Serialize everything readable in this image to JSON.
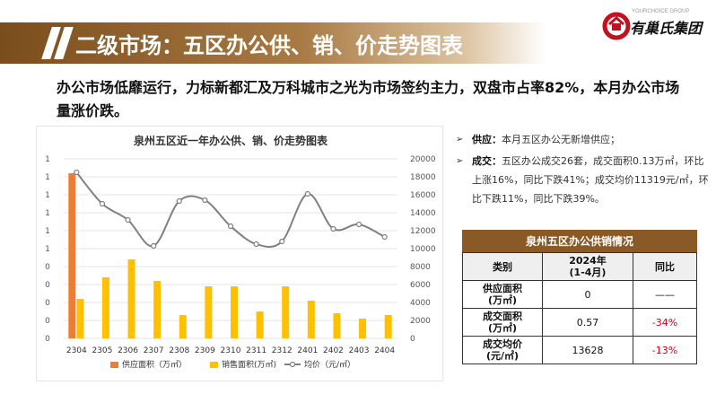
{
  "header": {
    "title": "二级市场：五区办公供、销、价走势图表",
    "logo_en": "YOURCHOICE GROUP",
    "logo_cn": "有巢氏集团"
  },
  "summary": "办公市场低靡运行，力标新都汇及万科城市之光为市场签约主力，双盘市占率82%，本月办公市场量涨价跌。",
  "bullets": [
    {
      "label": "供应：",
      "text": "本月五区办公无新增供应；"
    },
    {
      "label": "成交：",
      "text": "五区办公成交26套，成交面积0.13万㎡，环比上涨16%，同比下跌41%；成交均价11319元/㎡，环比下跌11%，同比下跌39%。"
    }
  ],
  "table": {
    "title": "泉州五区办公供销情况",
    "headers": [
      "类别",
      "2024年\n(1-4月)",
      "同比"
    ],
    "rows": [
      {
        "label": "供应面积\n(万㎡)",
        "value": "0",
        "yoy": "——"
      },
      {
        "label": "成交面积\n(万㎡)",
        "value": "0.57",
        "yoy": "-34%"
      },
      {
        "label": "成交均价\n(元/㎡)",
        "value": "13628",
        "yoy": "-13%"
      }
    ]
  },
  "colors": {
    "supply": "#ed7d31",
    "sales": "#ffc000",
    "price": "#808080",
    "header_brown": "#8a5a26",
    "negative": "#d0021b"
  },
  "chart_data": {
    "type": "bar",
    "title": "泉州五区近一年办公供、销、价走势图表",
    "categories": [
      "2304",
      "2305",
      "2306",
      "2307",
      "2308",
      "2309",
      "2310",
      "2311",
      "2312",
      "2401",
      "2402",
      "2403",
      "2404"
    ],
    "left_ticks": [
      "0",
      "0",
      "0",
      "0",
      "0",
      "1",
      "1",
      "1",
      "1",
      "1",
      "1"
    ],
    "right_ticks": [
      "0",
      "2000",
      "4000",
      "6000",
      "8000",
      "10000",
      "12000",
      "14000",
      "16000",
      "18000",
      "20000"
    ],
    "left_ylim": [
      0,
      1.0
    ],
    "right_ylim": [
      0,
      20000
    ],
    "series": [
      {
        "name": "供应面积（万㎡）",
        "type": "bar",
        "axis": "left",
        "values": [
          0.92,
          0,
          0,
          0,
          0,
          0,
          0,
          0,
          0,
          0,
          0,
          0,
          0
        ]
      },
      {
        "name": "销售面积(万㎡)",
        "type": "bar",
        "axis": "left",
        "values": [
          0.22,
          0.34,
          0.44,
          0.32,
          0.13,
          0.29,
          0.29,
          0.15,
          0.29,
          0.21,
          0.14,
          0.11,
          0.13
        ]
      },
      {
        "name": "均价（元/㎡）",
        "type": "line",
        "axis": "right",
        "values": [
          18500,
          15000,
          13200,
          10300,
          15300,
          15400,
          12500,
          10500,
          10800,
          16100,
          12200,
          12700,
          11300
        ]
      }
    ],
    "grid": true,
    "legend": "bottom"
  }
}
